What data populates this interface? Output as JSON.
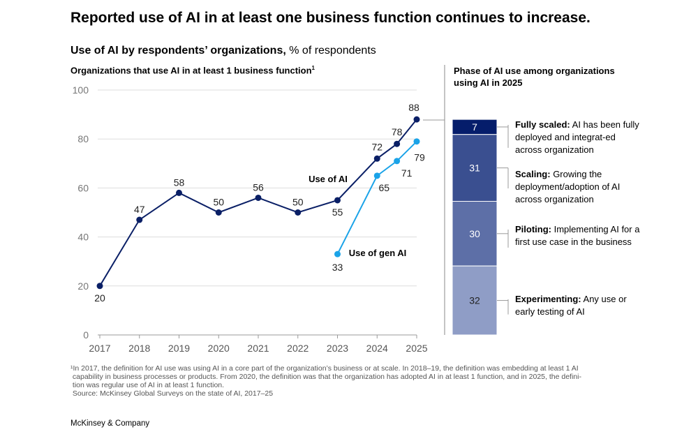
{
  "title": "Reported use of AI in at least one business function continues to increase.",
  "subtitle_bold": "Use of AI by respondents’ organizations,",
  "subtitle_rest": " % of respondents",
  "footnote_lines": [
    "¹In 2017, the definition for AI use was using AI in a core part of the organization’s business or at scale. In 2018–19, the definition was embedding at least 1 AI",
    " capability in business processes or products. From 2020, the definition was that the organization has adopted AI in at least 1 function, and in 2025, the defini-",
    " tion was regular use of AI in at least 1 function.",
    " Source: McKinsey Global Surveys on the state of AI, 2017–25"
  ],
  "brand": "McKinsey & Company",
  "chart_data": [
    {
      "type": "line",
      "title": "Organizations that use AI in at least 1 business function",
      "title_footnote": "1",
      "ylim": [
        0,
        100
      ],
      "yticks": [
        0,
        20,
        40,
        60,
        80,
        100
      ],
      "xticks": [
        "2017",
        "2018",
        "2019",
        "2020",
        "2021",
        "2022",
        "2023",
        "2024",
        "2025"
      ],
      "grid": true,
      "series": [
        {
          "name": "Use of AI",
          "color": "#0a1f66",
          "x": [
            2017,
            2018,
            2019,
            2020,
            2021,
            2022,
            2023,
            2024,
            2024.5,
            2025
          ],
          "y": [
            20,
            47,
            58,
            50,
            56,
            50,
            55,
            72,
            78,
            88
          ]
        },
        {
          "name": "Use of gen AI",
          "color": "#1aa3e8",
          "x": [
            2023,
            2024,
            2024.5,
            2025
          ],
          "y": [
            33,
            65,
            71,
            79
          ]
        }
      ]
    },
    {
      "type": "bar",
      "stacked": true,
      "title": "Phase of AI use among organizations using AI in 2025",
      "segments": [
        {
          "label_bold": "Fully scaled:",
          "label": " AI has been fully deployed and integrat-ed across organization",
          "value": 7,
          "color": "#051d6b"
        },
        {
          "label_bold": "Scaling:",
          "label": " Growing the deployment/adoption of AI across organization",
          "value": 31,
          "color": "#3a4f90"
        },
        {
          "label_bold": "Piloting:",
          "label": " Implementing AI for a first use case in the business",
          "value": 30,
          "color": "#5d6fa7"
        },
        {
          "label_bold": "Experimenting:",
          "label": " Any use or early testing of AI",
          "value": 32,
          "color": "#8f9dc6"
        }
      ]
    }
  ]
}
